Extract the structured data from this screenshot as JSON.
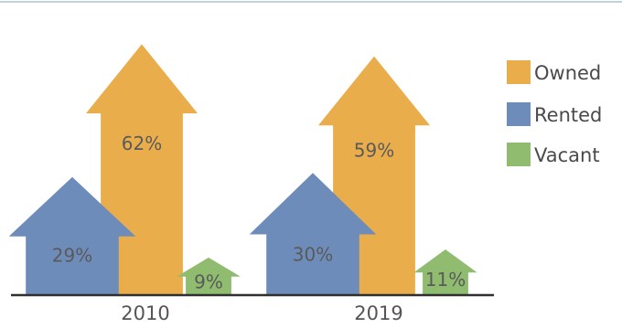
{
  "chart_data": {
    "type": "bar",
    "categories": [
      "2010",
      "2019"
    ],
    "series": [
      {
        "name": "Owned",
        "values": [
          62,
          59
        ],
        "color": "#e9ae4b"
      },
      {
        "name": "Rented",
        "values": [
          29,
          30
        ],
        "color": "#6e8cba"
      },
      {
        "name": "Vacant",
        "values": [
          9,
          11
        ],
        "color": "#8fbc6f"
      }
    ],
    "value_format": "{v}%",
    "mark_shape": "house-arrow",
    "legend_position": "right",
    "grid": false,
    "ylim": [
      0,
      70
    ]
  },
  "palette": {
    "top_rule": "#bcd3e0",
    "baseline": "#2f2f2f"
  }
}
